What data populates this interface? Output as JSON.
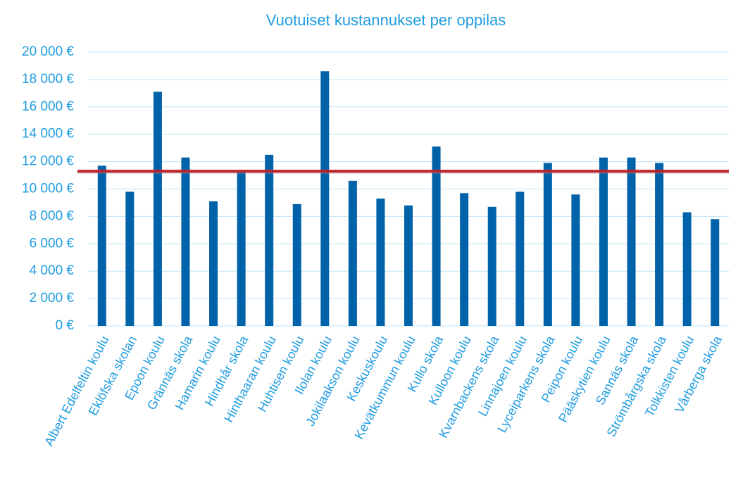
{
  "chart_data": {
    "type": "bar",
    "title": "Vuotuiset kustannukset per oppilas",
    "categories": [
      "Albert Edelfeltin koulu",
      "Eklöfska skolan",
      "Epoon koulu",
      "Grännäs skola",
      "Hamarin koulu",
      "Hindhår skola",
      "Hinthaaran koulu",
      "Huhtisen koulu",
      "Ilolan koulu",
      "Jokilaakson koulu",
      "Keskuskoulu",
      "Kevätkummun koulu",
      "Kullo skola",
      "Kulloon koulu",
      "Kvarnbackens skola",
      "Linnajoen koulu",
      "Lyceiparkens skola",
      "Peipon koulu",
      "Pääskytien koulu",
      "Sannäs skola",
      "Strömbårgska skola",
      "Tolkkisten koulu",
      "Vårberga skola"
    ],
    "values": [
      11700,
      9800,
      17100,
      12300,
      9100,
      11300,
      12500,
      8900,
      18600,
      10600,
      9300,
      8800,
      13100,
      9700,
      8700,
      9800,
      11900,
      9600,
      12300,
      12300,
      11900,
      8300,
      7800
    ],
    "color": "#0062a8",
    "reference_line": {
      "value": 11300,
      "color": "#c0222a"
    },
    "ylim": [
      0,
      20000
    ],
    "yticks": [
      {
        "value": 0,
        "label": "0 €"
      },
      {
        "value": 2000,
        "label": "2 000 €"
      },
      {
        "value": 4000,
        "label": "4 000 €"
      },
      {
        "value": 6000,
        "label": "6 000 €"
      },
      {
        "value": 8000,
        "label": "8 000 €"
      },
      {
        "value": 10000,
        "label": "10 000 €"
      },
      {
        "value": 12000,
        "label": "12 000 €"
      },
      {
        "value": 14000,
        "label": "14 000 €"
      },
      {
        "value": 16000,
        "label": "16 000 €"
      },
      {
        "value": 18000,
        "label": "18 000 €"
      },
      {
        "value": 20000,
        "label": "20 000 €"
      }
    ],
    "grid": true
  }
}
